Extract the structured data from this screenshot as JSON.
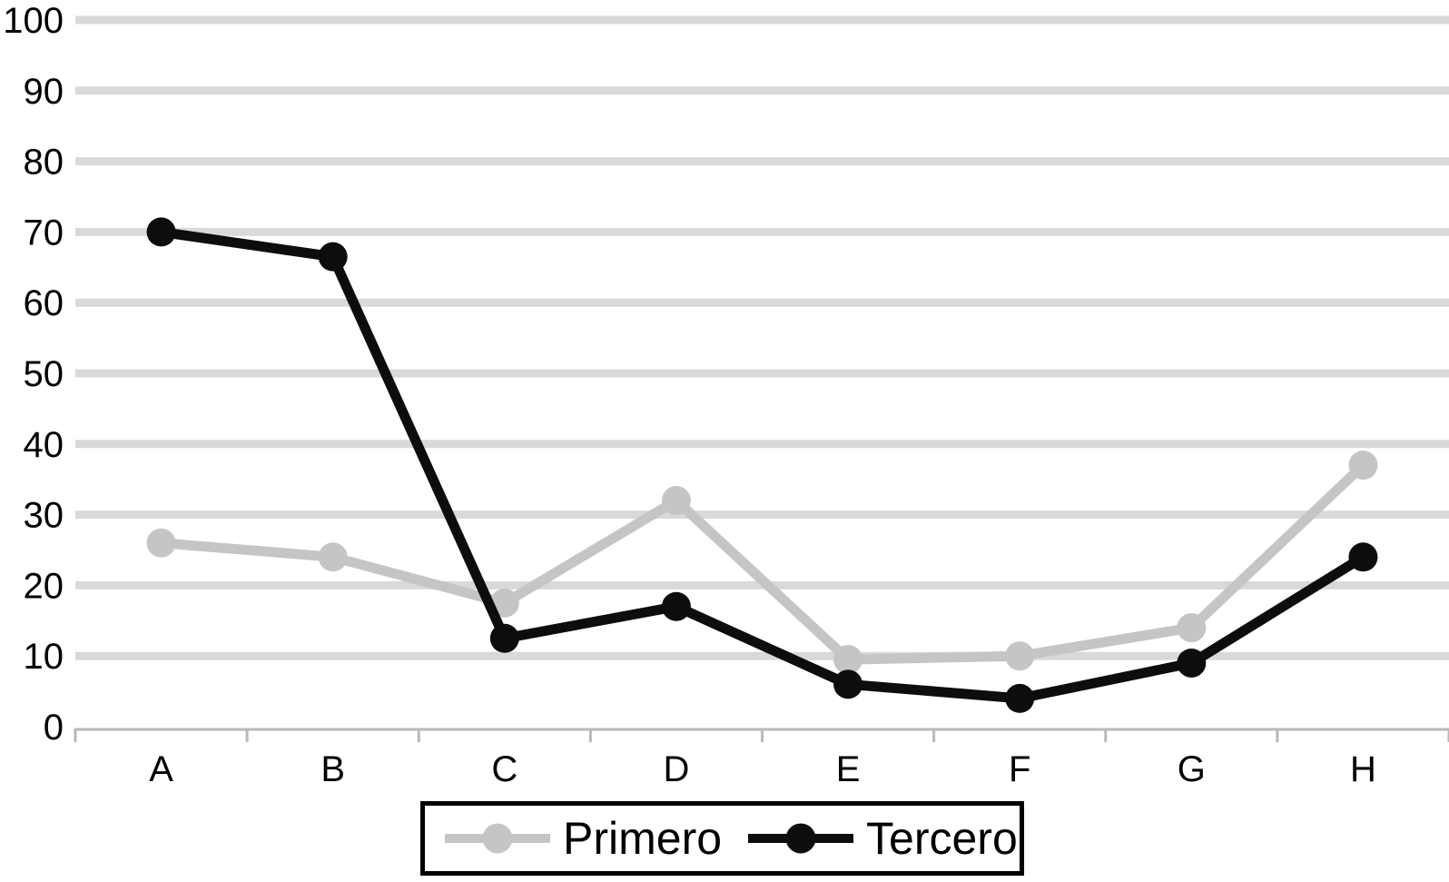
{
  "chart_data": {
    "type": "line",
    "title": "",
    "xlabel": "",
    "ylabel": "",
    "categories": [
      "A",
      "B",
      "C",
      "D",
      "E",
      "F",
      "G",
      "H"
    ],
    "series": [
      {
        "name": "Primero",
        "color": "#c5c5c5",
        "values": [
          26,
          24,
          17.5,
          32,
          9.5,
          10,
          14,
          37
        ]
      },
      {
        "name": "Tercero",
        "color": "#0d0d0d",
        "values": [
          70,
          66.5,
          12.5,
          17,
          6,
          4,
          9,
          24
        ]
      }
    ],
    "ylim": [
      0,
      100
    ],
    "y_ticks": [
      0,
      10,
      20,
      30,
      40,
      50,
      60,
      70,
      80,
      90,
      100
    ],
    "grid": true,
    "legend_position": "bottom",
    "colors": {
      "gridline": "#d9d9d9",
      "axis": "#b9b9b9",
      "tick_label": "#000000",
      "legend_border": "#000000",
      "background": "#ffffff"
    }
  }
}
